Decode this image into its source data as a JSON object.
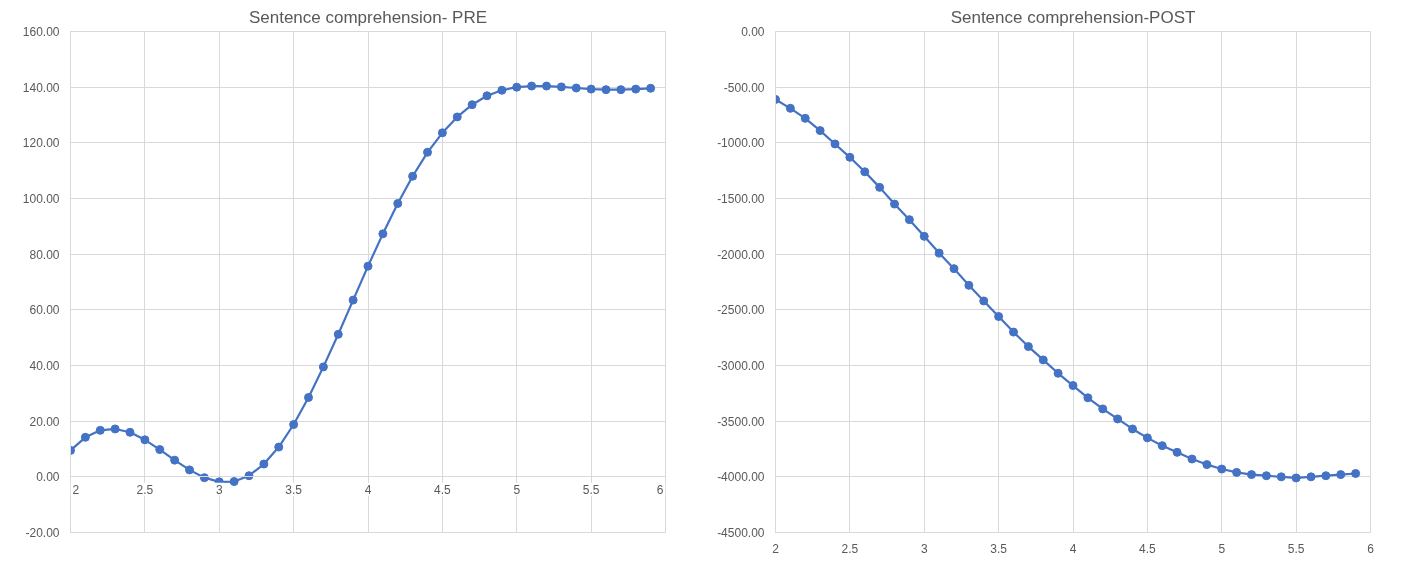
{
  "chart_data": [
    {
      "type": "line",
      "title": "Sentence comprehension- PRE",
      "marker": "circle",
      "grid": true,
      "x": [
        2.0,
        2.1,
        2.2,
        2.3,
        2.4,
        2.5,
        2.6,
        2.7,
        2.8,
        2.9,
        3.0,
        3.1,
        3.2,
        3.3,
        3.4,
        3.5,
        3.6,
        3.7,
        3.8,
        3.9,
        4.0,
        4.1,
        4.2,
        4.3,
        4.4,
        4.5,
        4.6,
        4.7,
        4.8,
        4.9,
        5.0,
        5.1,
        5.2,
        5.3,
        5.4,
        5.5,
        5.6,
        5.7,
        5.8,
        5.9
      ],
      "series": [
        {
          "color": "#4472c4",
          "values": [
            9.5,
            14.2,
            16.7,
            17.2,
            16.0,
            13.3,
            9.8,
            6.0,
            2.5,
            -0.3,
            -1.8,
            -1.7,
            0.4,
            4.6,
            10.7,
            18.8,
            28.5,
            39.5,
            51.2,
            63.5,
            75.7,
            87.3,
            98.2,
            108.0,
            116.6,
            123.6,
            129.3,
            133.7,
            136.9,
            138.9,
            140.0,
            140.4,
            140.4,
            140.1,
            139.7,
            139.3,
            139.1,
            139.1,
            139.3,
            139.6
          ]
        }
      ],
      "xlim": [
        2,
        6
      ],
      "xticks": [
        2,
        2.5,
        3,
        3.5,
        4,
        4.5,
        5,
        5.5,
        6
      ],
      "ylim": [
        -20,
        160
      ],
      "yticks": [
        {
          "value": -20,
          "label": "-20.00"
        },
        {
          "value": 0,
          "label": "0.00"
        },
        {
          "value": 20,
          "label": "20.00"
        },
        {
          "value": 40,
          "label": "40.00"
        },
        {
          "value": 60,
          "label": "60.00"
        },
        {
          "value": 80,
          "label": "80.00"
        },
        {
          "value": 100,
          "label": "100.00"
        },
        {
          "value": 120,
          "label": "120.00"
        },
        {
          "value": 140,
          "label": "140.00"
        },
        {
          "value": 160,
          "label": "160.00"
        }
      ]
    },
    {
      "type": "line",
      "title": "Sentence comprehension-POST",
      "marker": "circle",
      "grid": true,
      "x": [
        2.0,
        2.1,
        2.2,
        2.3,
        2.4,
        2.5,
        2.6,
        2.7,
        2.8,
        2.9,
        3.0,
        3.1,
        3.2,
        3.3,
        3.4,
        3.5,
        3.6,
        3.7,
        3.8,
        3.9,
        4.0,
        4.1,
        4.2,
        4.3,
        4.4,
        4.5,
        4.6,
        4.7,
        4.8,
        4.9,
        5.0,
        5.1,
        5.2,
        5.3,
        5.4,
        5.5,
        5.6,
        5.7,
        5.8,
        5.9
      ],
      "series": [
        {
          "color": "#4472c4",
          "values": [
            -610,
            -690,
            -780,
            -890,
            -1010,
            -1130,
            -1260,
            -1400,
            -1550,
            -1690,
            -1840,
            -1990,
            -2130,
            -2280,
            -2420,
            -2560,
            -2700,
            -2830,
            -2950,
            -3070,
            -3180,
            -3290,
            -3390,
            -3480,
            -3570,
            -3650,
            -3720,
            -3780,
            -3840,
            -3890,
            -3930,
            -3960,
            -3980,
            -3990,
            -4000,
            -4010,
            -4000,
            -3990,
            -3980,
            -3970
          ]
        }
      ],
      "xlim": [
        2,
        6
      ],
      "xticks": [
        2,
        2.5,
        3,
        3.5,
        4,
        4.5,
        5,
        5.5,
        6
      ],
      "ylim": [
        -4500,
        0
      ],
      "yticks": [
        {
          "value": -4500,
          "label": "-4500.00"
        },
        {
          "value": -4000,
          "label": "-4000.00"
        },
        {
          "value": -3500,
          "label": "-3500.00"
        },
        {
          "value": -3000,
          "label": "-3000.00"
        },
        {
          "value": -2500,
          "label": "-2500.00"
        },
        {
          "value": -2000,
          "label": "-2000.00"
        },
        {
          "value": -1500,
          "label": "-1500.00"
        },
        {
          "value": -1000,
          "label": "-1000.00"
        },
        {
          "value": -500,
          "label": "-500.00"
        },
        {
          "value": 0,
          "label": "0.00"
        }
      ]
    }
  ]
}
